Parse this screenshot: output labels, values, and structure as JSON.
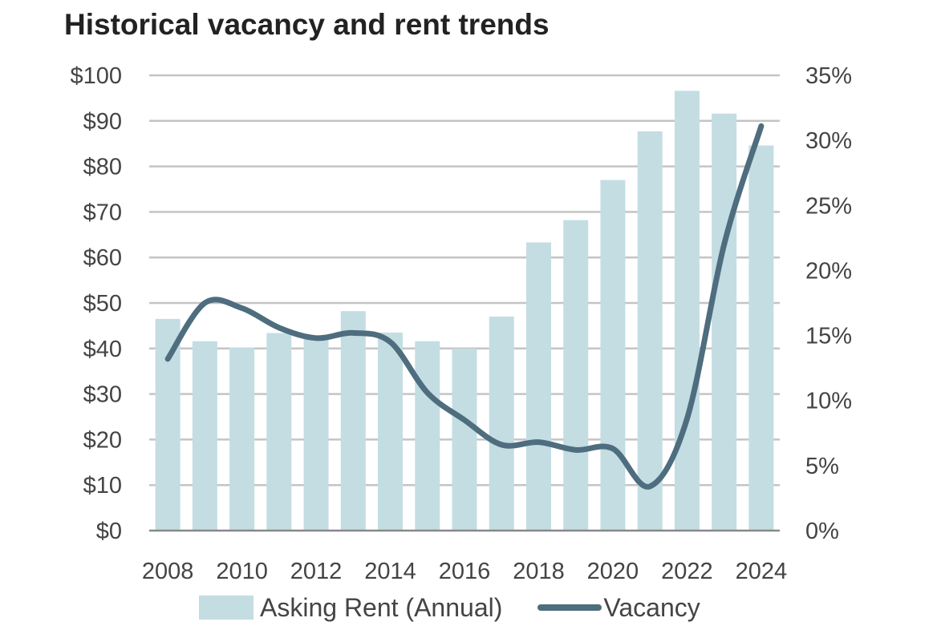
{
  "chart_data": {
    "type": "bar",
    "title": "Historical vacancy and rent trends",
    "categories": [
      "2008",
      "2009",
      "2010",
      "2011",
      "2012",
      "2013",
      "2014",
      "2015",
      "2016",
      "2017",
      "2018",
      "2019",
      "2020",
      "2021",
      "2022",
      "2023",
      "2024"
    ],
    "x_tick_labels": [
      "2008",
      "2010",
      "2012",
      "2014",
      "2016",
      "2018",
      "2020",
      "2022",
      "2024"
    ],
    "y_left": {
      "ylim": [
        0,
        100
      ],
      "tick_labels": [
        "$0",
        "$10",
        "$20",
        "$30",
        "$40",
        "$50",
        "$60",
        "$70",
        "$80",
        "$90",
        "$100"
      ]
    },
    "y_right": {
      "ylim": [
        0,
        35
      ],
      "tick_labels": [
        "0%",
        "5%",
        "10%",
        "15%",
        "20%",
        "25%",
        "30%",
        "35%"
      ]
    },
    "grid": true,
    "legend_position": "bottom",
    "series": [
      {
        "name": "Asking Rent (Annual)",
        "type": "bar",
        "axis": "left",
        "color": "#c3dde3",
        "values": [
          46.5,
          41.6,
          40.2,
          43.4,
          42.3,
          48.2,
          43.5,
          41.6,
          40.0,
          47.0,
          63.3,
          68.2,
          77.0,
          87.7,
          96.6,
          91.6,
          84.6
        ]
      },
      {
        "name": "Vacancy",
        "type": "line",
        "axis": "right",
        "color": "#4e6d7e",
        "values": [
          13.2,
          17.5,
          17.1,
          15.6,
          14.8,
          15.2,
          14.5,
          10.6,
          8.5,
          6.6,
          6.8,
          6.2,
          6.3,
          3.4,
          8.6,
          22.0,
          31.1
        ]
      }
    ]
  }
}
